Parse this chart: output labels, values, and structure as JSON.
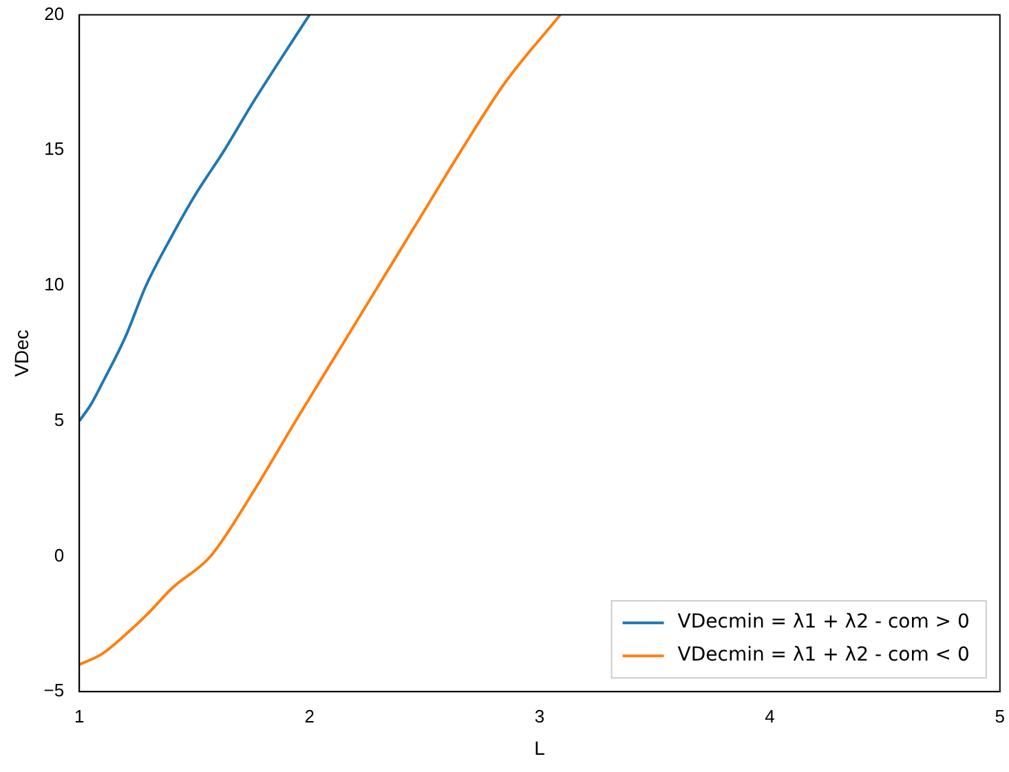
{
  "chart_data": {
    "type": "line",
    "xlabel": "L",
    "ylabel": "VDec",
    "xlim": [
      1,
      5
    ],
    "ylim": [
      -5,
      20
    ],
    "xticks": [
      1,
      2,
      3,
      4,
      5
    ],
    "yticks": [
      -5,
      0,
      5,
      10,
      15,
      20
    ],
    "grid": false,
    "legend": "bottom right",
    "marker": "none",
    "line_style": "solid",
    "series": [
      {
        "name": "VDecmin = λ1 + λ2 - com > 0",
        "color": "#1f77b4",
        "x": [
          1,
          1.05,
          1.1,
          1.2,
          1.29,
          1.4,
          1.5,
          1.63,
          1.75,
          1.87,
          2
        ],
        "values": [
          5,
          5.6,
          6.4,
          8.1,
          10,
          11.8,
          13.3,
          15,
          16.7,
          18.3,
          20
        ]
      },
      {
        "name": "VDecmin = λ1 + λ2 - com < 0",
        "color": "#ff7f0e",
        "x": [
          1,
          1.1,
          1.2,
          1.3,
          1.4,
          1.57,
          1.75,
          1.94,
          2.12,
          2.3,
          2.48,
          2.66,
          2.85,
          3.09
        ],
        "values": [
          -4,
          -3.6,
          -2.9,
          -2.1,
          -1.2,
          0,
          2.3,
          5,
          7.5,
          10,
          12.5,
          15,
          17.5,
          20
        ]
      }
    ]
  }
}
